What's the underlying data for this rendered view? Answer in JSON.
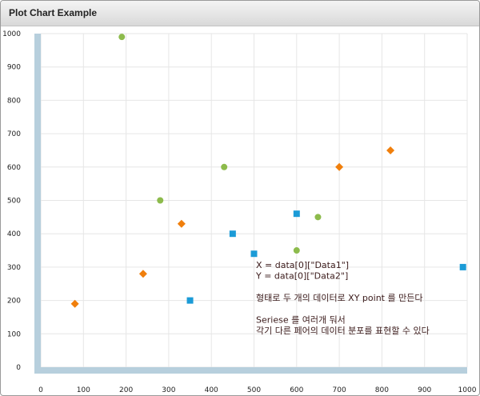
{
  "window": {
    "title": "Plot Chart Example"
  },
  "chart_data": {
    "type": "scatter",
    "xlim": [
      0,
      1000
    ],
    "ylim": [
      0,
      1000
    ],
    "x_ticks": [
      0,
      100,
      200,
      300,
      400,
      500,
      600,
      700,
      800,
      900,
      1000
    ],
    "y_ticks": [
      0,
      100,
      200,
      300,
      400,
      500,
      600,
      700,
      800,
      900,
      1000
    ],
    "grid": true,
    "series": [
      {
        "marker": "circle",
        "color": "#8dbb4c",
        "points": [
          [
            190,
            990
          ],
          [
            280,
            500
          ],
          [
            430,
            600
          ],
          [
            600,
            350
          ],
          [
            650,
            450
          ]
        ]
      },
      {
        "marker": "diamond",
        "color": "#f07f0c",
        "points": [
          [
            80,
            190
          ],
          [
            240,
            280
          ],
          [
            330,
            430
          ],
          [
            700,
            600
          ],
          [
            820,
            650
          ]
        ]
      },
      {
        "marker": "square",
        "color": "#1b9bd7",
        "points": [
          [
            350,
            200
          ],
          [
            450,
            400
          ],
          [
            500,
            340
          ],
          [
            600,
            460
          ],
          [
            990,
            300
          ]
        ]
      }
    ],
    "annotation_lines": [
      "X = data[0][\"Data1\"]",
      "Y = data[0][\"Data2\"]",
      "",
      "형태로 두 개의 데이터로 XY point 를 만든다",
      "",
      "Seriese 를 여러개 둬서",
      "각기 다른 페어의 데이터 분포를 표현할 수 있다"
    ]
  }
}
